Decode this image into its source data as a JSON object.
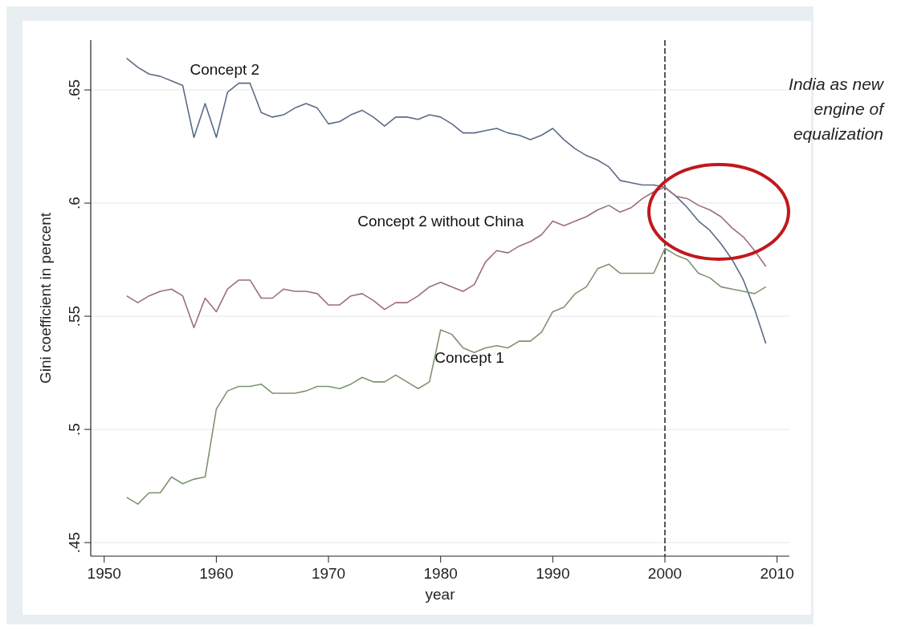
{
  "chart_data": {
    "type": "line",
    "xlabel": "year",
    "ylabel": "Gini coefficient in percent",
    "x": [
      1952,
      1953,
      1954,
      1955,
      1956,
      1957,
      1958,
      1959,
      1960,
      1961,
      1962,
      1963,
      1964,
      1965,
      1966,
      1967,
      1968,
      1969,
      1970,
      1971,
      1972,
      1973,
      1974,
      1975,
      1976,
      1977,
      1978,
      1979,
      1980,
      1981,
      1982,
      1983,
      1984,
      1985,
      1986,
      1987,
      1988,
      1989,
      1990,
      1991,
      1992,
      1993,
      1994,
      1995,
      1996,
      1997,
      1998,
      1999,
      2000,
      2001,
      2002,
      2003,
      2004,
      2005,
      2006,
      2007,
      2008,
      2009
    ],
    "series": [
      {
        "name": "Concept 2",
        "color": "#5c6b86",
        "values": [
          0.664,
          0.66,
          0.657,
          0.656,
          0.654,
          0.652,
          0.629,
          0.644,
          0.629,
          0.649,
          0.653,
          0.653,
          0.64,
          0.638,
          0.639,
          0.642,
          0.644,
          0.642,
          0.635,
          0.636,
          0.639,
          0.641,
          0.638,
          0.634,
          0.638,
          0.638,
          0.637,
          0.639,
          0.638,
          0.635,
          0.631,
          0.631,
          0.632,
          0.633,
          0.631,
          0.63,
          0.628,
          0.63,
          0.633,
          0.628,
          0.624,
          0.621,
          0.619,
          0.616,
          0.61,
          0.609,
          0.608,
          0.608,
          0.607,
          0.603,
          0.598,
          0.592,
          0.588,
          0.582,
          0.575,
          0.566,
          0.553,
          0.538
        ]
      },
      {
        "name": "Concept 2 without China",
        "color": "#9c6f7c",
        "values": [
          0.559,
          0.556,
          0.559,
          0.561,
          0.562,
          0.559,
          0.545,
          0.558,
          0.552,
          0.562,
          0.566,
          0.566,
          0.558,
          0.558,
          0.562,
          0.561,
          0.561,
          0.56,
          0.555,
          0.555,
          0.559,
          0.56,
          0.557,
          0.553,
          0.556,
          0.556,
          0.559,
          0.563,
          0.565,
          0.563,
          0.561,
          0.564,
          0.574,
          0.579,
          0.578,
          0.581,
          0.583,
          0.586,
          0.592,
          0.59,
          0.592,
          0.594,
          0.597,
          0.599,
          0.596,
          0.598,
          0.602,
          0.605,
          0.607,
          0.603,
          0.602,
          0.599,
          0.597,
          0.594,
          0.589,
          0.585,
          0.579,
          0.572
        ]
      },
      {
        "name": "Concept 1",
        "color": "#7e9472",
        "values": [
          0.47,
          0.467,
          0.472,
          0.472,
          0.479,
          0.476,
          0.478,
          0.479,
          0.509,
          0.517,
          0.519,
          0.519,
          0.52,
          0.516,
          0.516,
          0.516,
          0.517,
          0.519,
          0.519,
          0.518,
          0.52,
          0.523,
          0.521,
          0.521,
          0.524,
          0.521,
          0.518,
          0.521,
          0.544,
          0.542,
          0.536,
          0.534,
          0.536,
          0.537,
          0.536,
          0.539,
          0.539,
          0.543,
          0.552,
          0.554,
          0.56,
          0.563,
          0.571,
          0.573,
          0.569,
          0.569,
          0.569,
          0.569,
          0.58,
          0.577,
          0.575,
          0.569,
          0.567,
          0.563,
          0.562,
          0.561,
          0.56,
          0.563
        ]
      }
    ],
    "xlim": [
      1948.8,
      2011.1
    ],
    "xticks": [
      1950,
      1960,
      1970,
      1980,
      1990,
      2000,
      2010
    ],
    "ylim": [
      0.444,
      0.672
    ],
    "yticks": [
      {
        "value": 0.45,
        "label": ".45"
      },
      {
        "value": 0.5,
        "label": ".5"
      },
      {
        "value": 0.55,
        "label": ".55"
      },
      {
        "value": 0.6,
        "label": ".6"
      },
      {
        "value": 0.65,
        "label": ".65"
      }
    ],
    "grid": "y",
    "ref_lines": [
      {
        "axis": "x",
        "value": 2000,
        "color": "#000000",
        "line_style": "dashed"
      }
    ],
    "annotations": [
      "India as new engine of equalization"
    ]
  }
}
